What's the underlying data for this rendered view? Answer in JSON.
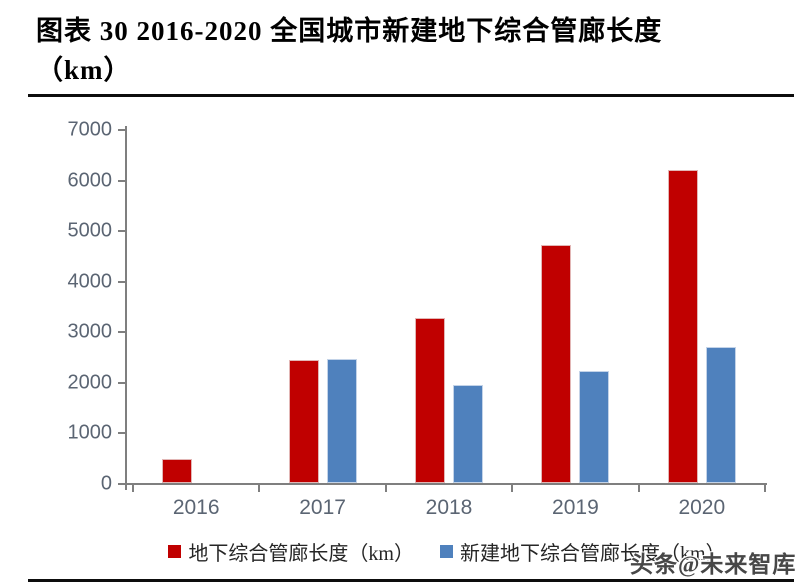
{
  "title": {
    "line1": "图表 30 2016-2020 全国城市新建地下综合管廊长度",
    "line2": "（km）"
  },
  "watermark": "头条@未来智库",
  "colors": {
    "series1": "#c00000",
    "series2": "#4f81bd",
    "axis": "#7f7f7f",
    "axis_label": "#5b6573"
  },
  "chart_data": {
    "type": "bar",
    "title": "2016-2020 全国城市新建地下综合管廊长度（km）",
    "categories": [
      "2016",
      "2017",
      "2018",
      "2019",
      "2020"
    ],
    "series": [
      {
        "name": "地下综合管廊长度（km）",
        "color": "#c00000",
        "values": [
          480,
          2450,
          3280,
          4720,
          6200
        ]
      },
      {
        "name": "新建地下综合管廊长度（km）",
        "color": "#4f81bd",
        "values": [
          0,
          2460,
          1950,
          2230,
          2700
        ]
      }
    ],
    "xlabel": "",
    "ylabel": "",
    "ylim": [
      0,
      7000
    ],
    "ytick_step": 1000,
    "grid": false,
    "legend_position": "bottom"
  }
}
